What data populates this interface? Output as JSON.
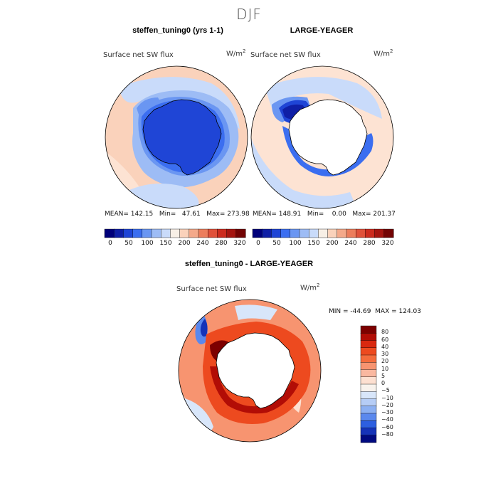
{
  "season": "DJF",
  "panels": [
    {
      "title": "steffen_tuning0 (yrs 1-1)",
      "variable": "Surface net SW flux",
      "units_base": "W/m",
      "units_exp": "2",
      "stats": "MEAN= 142.15   Min=   47.61   Max= 273.98"
    },
    {
      "title": "LARGE-YEAGER",
      "variable": "Surface net SW flux",
      "units_base": "W/m",
      "units_exp": "2",
      "stats": "MEAN= 148.91   Min=    0.00   Max= 201.37"
    },
    {
      "title": "steffen_tuning0 - LARGE-YEAGER",
      "variable": "Surface net SW flux",
      "units_base": "W/m",
      "units_exp": "2",
      "stats": "MIN = -44.69  MAX = 124.03"
    }
  ],
  "colorbar_abs": {
    "labels": [
      "0",
      "50",
      "100",
      "150",
      "200",
      "240",
      "280",
      "320"
    ],
    "colors": [
      "#00007a",
      "#0f1fa6",
      "#1f45d6",
      "#3b6ef0",
      "#6a96f2",
      "#9dbcf5",
      "#c9dbfa",
      "#f7efe6",
      "#fad2bb",
      "#f4a98a",
      "#ec7d5c",
      "#e0513a",
      "#cc2b1e",
      "#a51510",
      "#730404"
    ]
  },
  "colorbar_diff": {
    "labels": [
      "80",
      "60",
      "40",
      "30",
      "20",
      "10",
      "5",
      "0",
      "−5",
      "−10",
      "−20",
      "−30",
      "−40",
      "−60",
      "−80"
    ],
    "colors": [
      "#7d0000",
      "#b20d06",
      "#d9280f",
      "#ed4a1f",
      "#f46c3c",
      "#f79470",
      "#fab8a0",
      "#fde0d1",
      "#f8f2ec",
      "#d8e6fa",
      "#b6cdf6",
      "#8cb0f2",
      "#5a88ed",
      "#2d5fe0",
      "#1533b8",
      "#000a80"
    ]
  }
}
